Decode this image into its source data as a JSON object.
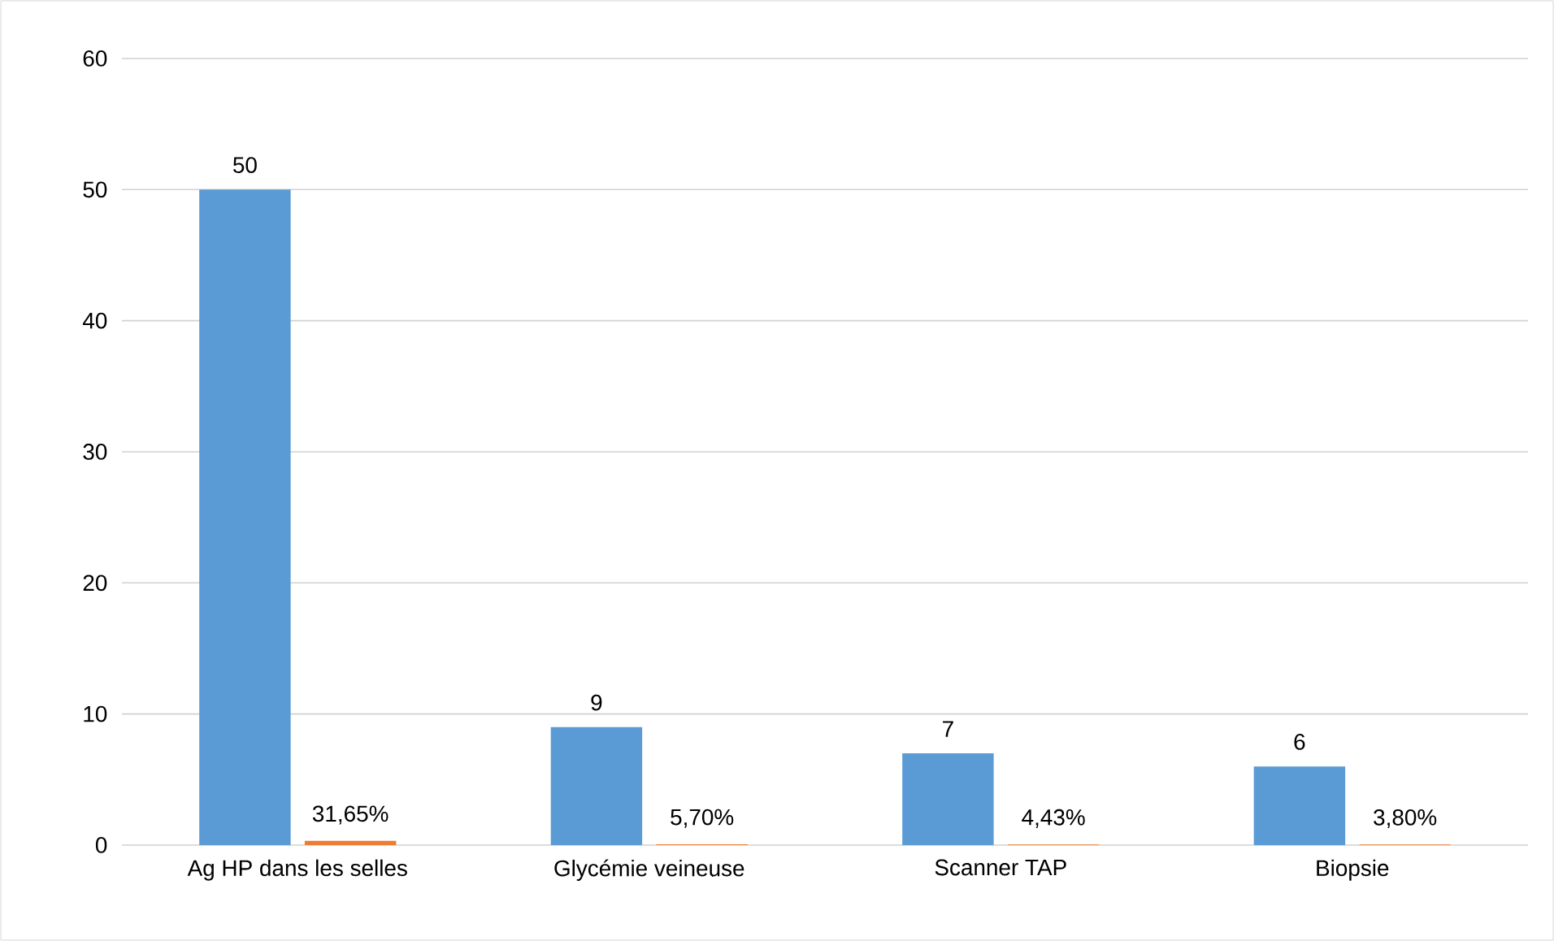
{
  "chart_data": {
    "type": "bar",
    "categories": [
      "Ag HP dans les selles",
      "Glycémie veineuse",
      "Scanner TAP",
      "Biopsie"
    ],
    "series": [
      {
        "color": "#5b9bd5",
        "values": [
          50,
          9,
          7,
          6
        ],
        "value_labels": [
          "50",
          "9",
          "7",
          "6"
        ]
      },
      {
        "color": "#ed7d31",
        "values": [
          0.3165,
          0.057,
          0.0443,
          0.038
        ],
        "value_labels": [
          "31,65%",
          "5,70%",
          "4,43%",
          "3,80%"
        ]
      }
    ],
    "ylim": [
      0,
      60
    ],
    "yticks": [
      0,
      10,
      20,
      30,
      40,
      50,
      60
    ],
    "grid": "y"
  }
}
